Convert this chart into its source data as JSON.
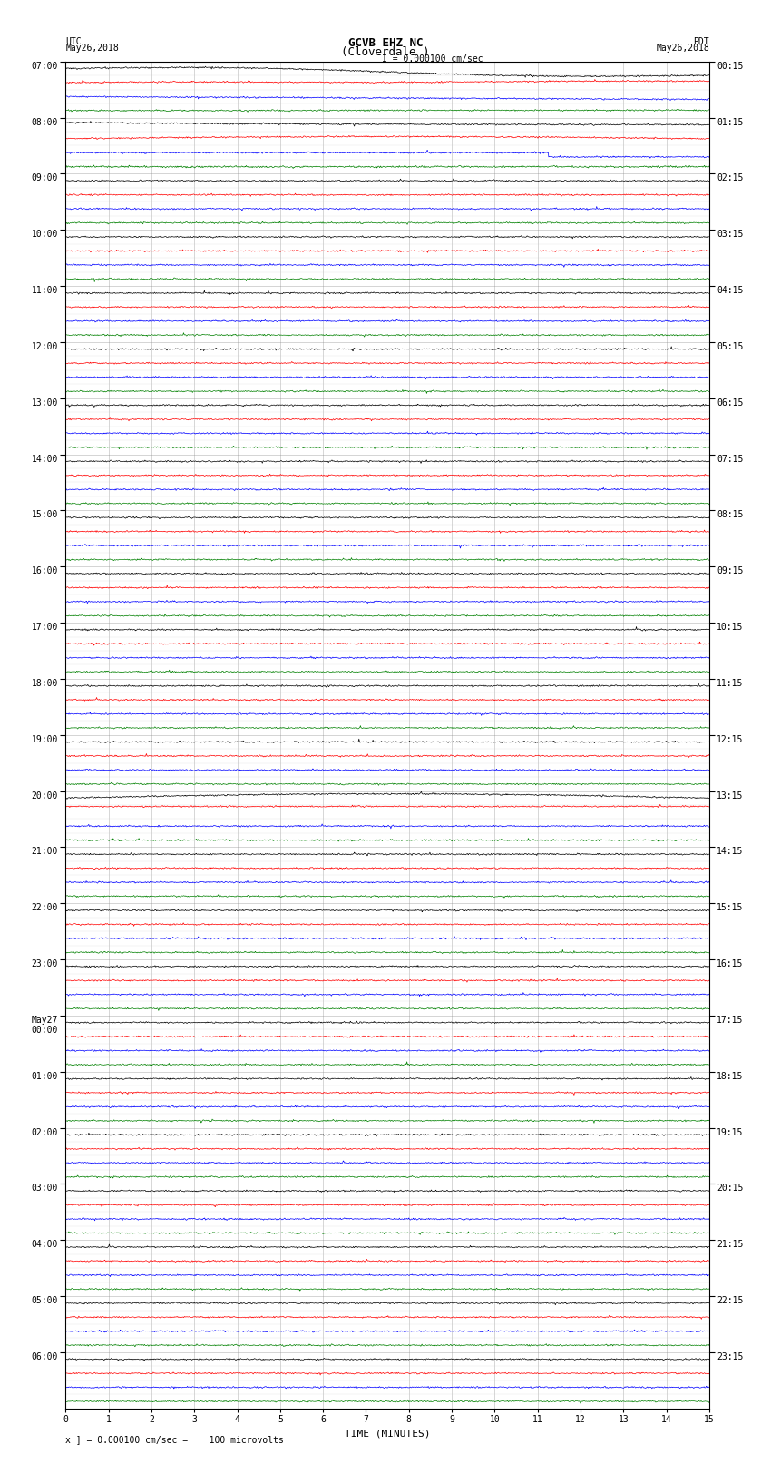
{
  "title_line1": "GCVB EHZ NC",
  "title_line2": "(Cloverdale )",
  "scale_label": "I = 0.000100 cm/sec",
  "utc_label": "UTC\nMay26,2018",
  "pdt_label": "PDT\nMay26,2018",
  "xlabel": "TIME (MINUTES)",
  "footer": "x ] = 0.000100 cm/sec =    100 microvolts",
  "left_times": [
    "07:00",
    "08:00",
    "09:00",
    "10:00",
    "11:00",
    "12:00",
    "13:00",
    "14:00",
    "15:00",
    "16:00",
    "17:00",
    "18:00",
    "19:00",
    "20:00",
    "21:00",
    "22:00",
    "23:00",
    "May27\n00:00",
    "01:00",
    "02:00",
    "03:00",
    "04:00",
    "05:00",
    "06:00"
  ],
  "right_times": [
    "00:15",
    "01:15",
    "02:15",
    "03:15",
    "04:15",
    "05:15",
    "06:15",
    "07:15",
    "08:15",
    "09:15",
    "10:15",
    "11:15",
    "12:15",
    "13:15",
    "14:15",
    "15:15",
    "16:15",
    "17:15",
    "18:15",
    "19:15",
    "20:15",
    "21:15",
    "22:15",
    "23:15"
  ],
  "trace_colors": [
    "black",
    "red",
    "blue",
    "green"
  ],
  "n_rows": 96,
  "bg_color": "white"
}
